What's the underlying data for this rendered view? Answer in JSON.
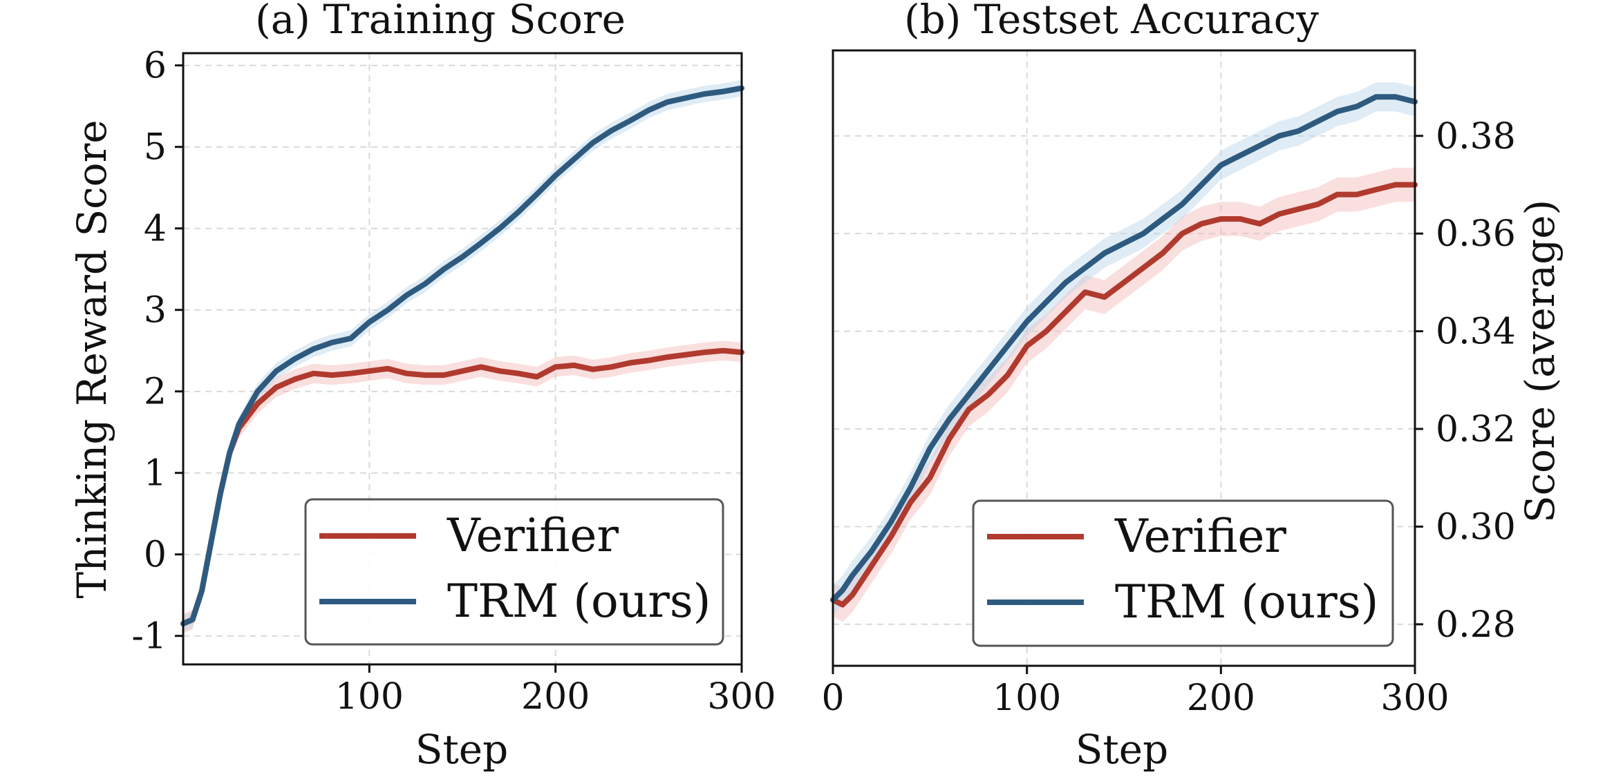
{
  "colors": {
    "verifier": "#b03a2e",
    "trm": "#2e5a7f",
    "verifier_band": "#f1b9b5",
    "trm_band": "#b9d4e8",
    "grid": "#d9d9d9",
    "axis": "#111111"
  },
  "chart_data": [
    {
      "type": "line",
      "title": "(a) Training Score",
      "xlabel": "Step",
      "ylabel": "Thinking Reward Score",
      "xlim": [
        0,
        300
      ],
      "ylim": [
        -1.35,
        6.15
      ],
      "xticks": [
        100,
        200,
        300
      ],
      "xtick_labels": [
        "100",
        "200",
        "300"
      ],
      "yticks": [
        -1,
        0,
        1,
        2,
        3,
        4,
        5,
        6
      ],
      "ytick_labels": [
        "-1",
        "0",
        "1",
        "2",
        "3",
        "4",
        "5",
        "6"
      ],
      "yaxis_side": "left",
      "grid": true,
      "legend_position": "lower-right",
      "series": [
        {
          "name": "Verifier",
          "color_key": "verifier",
          "band": 0.12,
          "x": [
            0,
            5,
            10,
            15,
            20,
            25,
            30,
            40,
            50,
            60,
            70,
            80,
            90,
            100,
            110,
            120,
            130,
            140,
            150,
            160,
            170,
            180,
            190,
            200,
            210,
            220,
            230,
            240,
            250,
            260,
            270,
            280,
            290,
            300
          ],
          "y": [
            -0.85,
            -0.8,
            -0.45,
            0.15,
            0.75,
            1.25,
            1.55,
            1.85,
            2.05,
            2.15,
            2.22,
            2.2,
            2.22,
            2.25,
            2.28,
            2.22,
            2.2,
            2.2,
            2.25,
            2.3,
            2.25,
            2.22,
            2.18,
            2.3,
            2.32,
            2.27,
            2.3,
            2.35,
            2.38,
            2.42,
            2.45,
            2.48,
            2.5,
            2.48
          ]
        },
        {
          "name": "TRM (ours)",
          "color_key": "trm",
          "band": 0.1,
          "x": [
            0,
            5,
            10,
            15,
            20,
            25,
            30,
            40,
            50,
            60,
            70,
            80,
            90,
            100,
            110,
            120,
            130,
            140,
            150,
            160,
            170,
            180,
            190,
            200,
            210,
            220,
            230,
            240,
            250,
            260,
            270,
            280,
            290,
            300
          ],
          "y": [
            -0.85,
            -0.8,
            -0.45,
            0.15,
            0.75,
            1.25,
            1.6,
            2.0,
            2.25,
            2.4,
            2.52,
            2.6,
            2.65,
            2.85,
            3.0,
            3.18,
            3.32,
            3.5,
            3.65,
            3.82,
            4.0,
            4.2,
            4.42,
            4.65,
            4.85,
            5.05,
            5.2,
            5.32,
            5.45,
            5.55,
            5.6,
            5.65,
            5.68,
            5.72
          ]
        }
      ]
    },
    {
      "type": "line",
      "title": "(b) Testset Accuracy",
      "xlabel": "Step",
      "ylabel": "Score (average)",
      "xlim": [
        0,
        300
      ],
      "ylim": [
        0.2715,
        0.3975
      ],
      "xticks": [
        0,
        100,
        200,
        300
      ],
      "xtick_labels": [
        "0",
        "100",
        "200",
        "300"
      ],
      "yticks": [
        0.28,
        0.3,
        0.32,
        0.34,
        0.36,
        0.38
      ],
      "ytick_labels": [
        "0.28",
        "0.30",
        "0.32",
        "0.34",
        "0.36",
        "0.38"
      ],
      "yaxis_side": "right",
      "grid": true,
      "legend_position": "lower-right",
      "series": [
        {
          "name": "Verifier",
          "color_key": "verifier",
          "band": 0.0035,
          "x": [
            0,
            5,
            10,
            20,
            30,
            40,
            50,
            60,
            70,
            80,
            90,
            100,
            110,
            120,
            130,
            140,
            150,
            160,
            170,
            180,
            190,
            200,
            210,
            220,
            230,
            240,
            250,
            260,
            270,
            280,
            290,
            300
          ],
          "y": [
            0.285,
            0.284,
            0.286,
            0.292,
            0.298,
            0.305,
            0.31,
            0.318,
            0.324,
            0.327,
            0.331,
            0.337,
            0.34,
            0.344,
            0.348,
            0.347,
            0.35,
            0.353,
            0.356,
            0.36,
            0.362,
            0.363,
            0.363,
            0.362,
            0.364,
            0.365,
            0.366,
            0.368,
            0.368,
            0.369,
            0.37,
            0.37
          ]
        },
        {
          "name": "TRM (ours)",
          "color_key": "trm",
          "band": 0.003,
          "x": [
            0,
            5,
            10,
            20,
            30,
            40,
            50,
            60,
            70,
            80,
            90,
            100,
            110,
            120,
            130,
            140,
            150,
            160,
            170,
            180,
            190,
            200,
            210,
            220,
            230,
            240,
            250,
            260,
            270,
            280,
            290,
            300
          ],
          "y": [
            0.285,
            0.287,
            0.29,
            0.295,
            0.301,
            0.308,
            0.316,
            0.322,
            0.327,
            0.332,
            0.337,
            0.342,
            0.346,
            0.35,
            0.353,
            0.356,
            0.358,
            0.36,
            0.363,
            0.366,
            0.37,
            0.374,
            0.376,
            0.378,
            0.38,
            0.381,
            0.383,
            0.385,
            0.386,
            0.388,
            0.388,
            0.387
          ]
        }
      ]
    }
  ]
}
